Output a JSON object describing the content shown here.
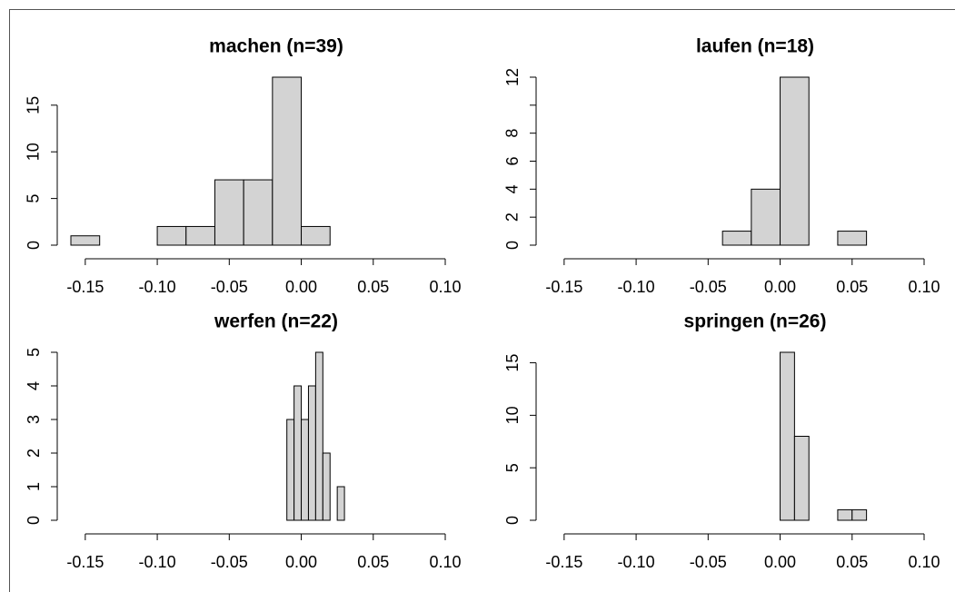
{
  "chart_data": [
    {
      "type": "histogram",
      "title": "machen (n=39)",
      "bins": [
        -0.16,
        -0.14,
        -0.12,
        -0.1,
        -0.08,
        -0.06,
        -0.04,
        -0.02,
        0.0,
        0.02
      ],
      "values": [
        1,
        0,
        0,
        2,
        2,
        7,
        7,
        18,
        2
      ],
      "color": "#d3d3d3",
      "xlim": [
        -0.16,
        0.1
      ],
      "xticks": [
        -0.15,
        {
          "value": -0.1,
          "label": "-0.10"
        },
        -0.05,
        {
          "value": 0,
          "label": "0.00"
        },
        0.05,
        {
          "value": 0.1,
          "label": "0.10"
        }
      ],
      "ylim": [
        0,
        18
      ],
      "yticks": [
        0,
        5,
        10,
        15
      ]
    },
    {
      "type": "histogram",
      "title": "laufen (n=18)",
      "bins": [
        -0.04,
        -0.02,
        0.0,
        0.02,
        0.04,
        0.06
      ],
      "values": [
        1,
        4,
        12,
        0,
        1
      ],
      "color": "#d3d3d3",
      "xlim": [
        -0.16,
        0.1
      ],
      "xticks": [
        -0.15,
        {
          "value": -0.1,
          "label": "-0.10"
        },
        -0.05,
        {
          "value": 0,
          "label": "0.00"
        },
        0.05,
        {
          "value": 0.1,
          "label": "0.10"
        }
      ],
      "ylim": [
        0,
        12
      ],
      "yticks": [
        0,
        2,
        4,
        6,
        8,
        {
          "value": 10,
          "label": null
        },
        12
      ]
    },
    {
      "type": "histogram",
      "title": "werfen (n=22)",
      "bins": [
        -0.01,
        -0.005,
        0.0,
        0.005,
        0.01,
        0.015,
        0.02,
        0.025,
        0.03
      ],
      "values": [
        3,
        4,
        3,
        4,
        5,
        2,
        0,
        1
      ],
      "color": "#d3d3d3",
      "xlim": [
        -0.16,
        0.1
      ],
      "xticks": [
        -0.15,
        {
          "value": -0.1,
          "label": "-0.10"
        },
        -0.05,
        {
          "value": 0,
          "label": "0.00"
        },
        0.05,
        {
          "value": 0.1,
          "label": "0.10"
        }
      ],
      "ylim": [
        0,
        5
      ],
      "yticks": [
        0,
        1,
        2,
        3,
        4,
        5
      ]
    },
    {
      "type": "histogram",
      "title": "springen (n=26)",
      "bins": [
        0.0,
        0.01,
        0.02,
        0.03,
        0.04,
        0.05,
        0.06
      ],
      "values": [
        16,
        8,
        0,
        0,
        1,
        1
      ],
      "color": "#d3d3d3",
      "xlim": [
        -0.16,
        0.1
      ],
      "xticks": [
        -0.15,
        {
          "value": -0.1,
          "label": "-0.10"
        },
        -0.05,
        {
          "value": 0,
          "label": "0.00"
        },
        0.05,
        {
          "value": 0.1,
          "label": "0.10"
        }
      ],
      "ylim": [
        0,
        16
      ],
      "yticks": [
        0,
        5,
        10,
        15
      ]
    }
  ]
}
